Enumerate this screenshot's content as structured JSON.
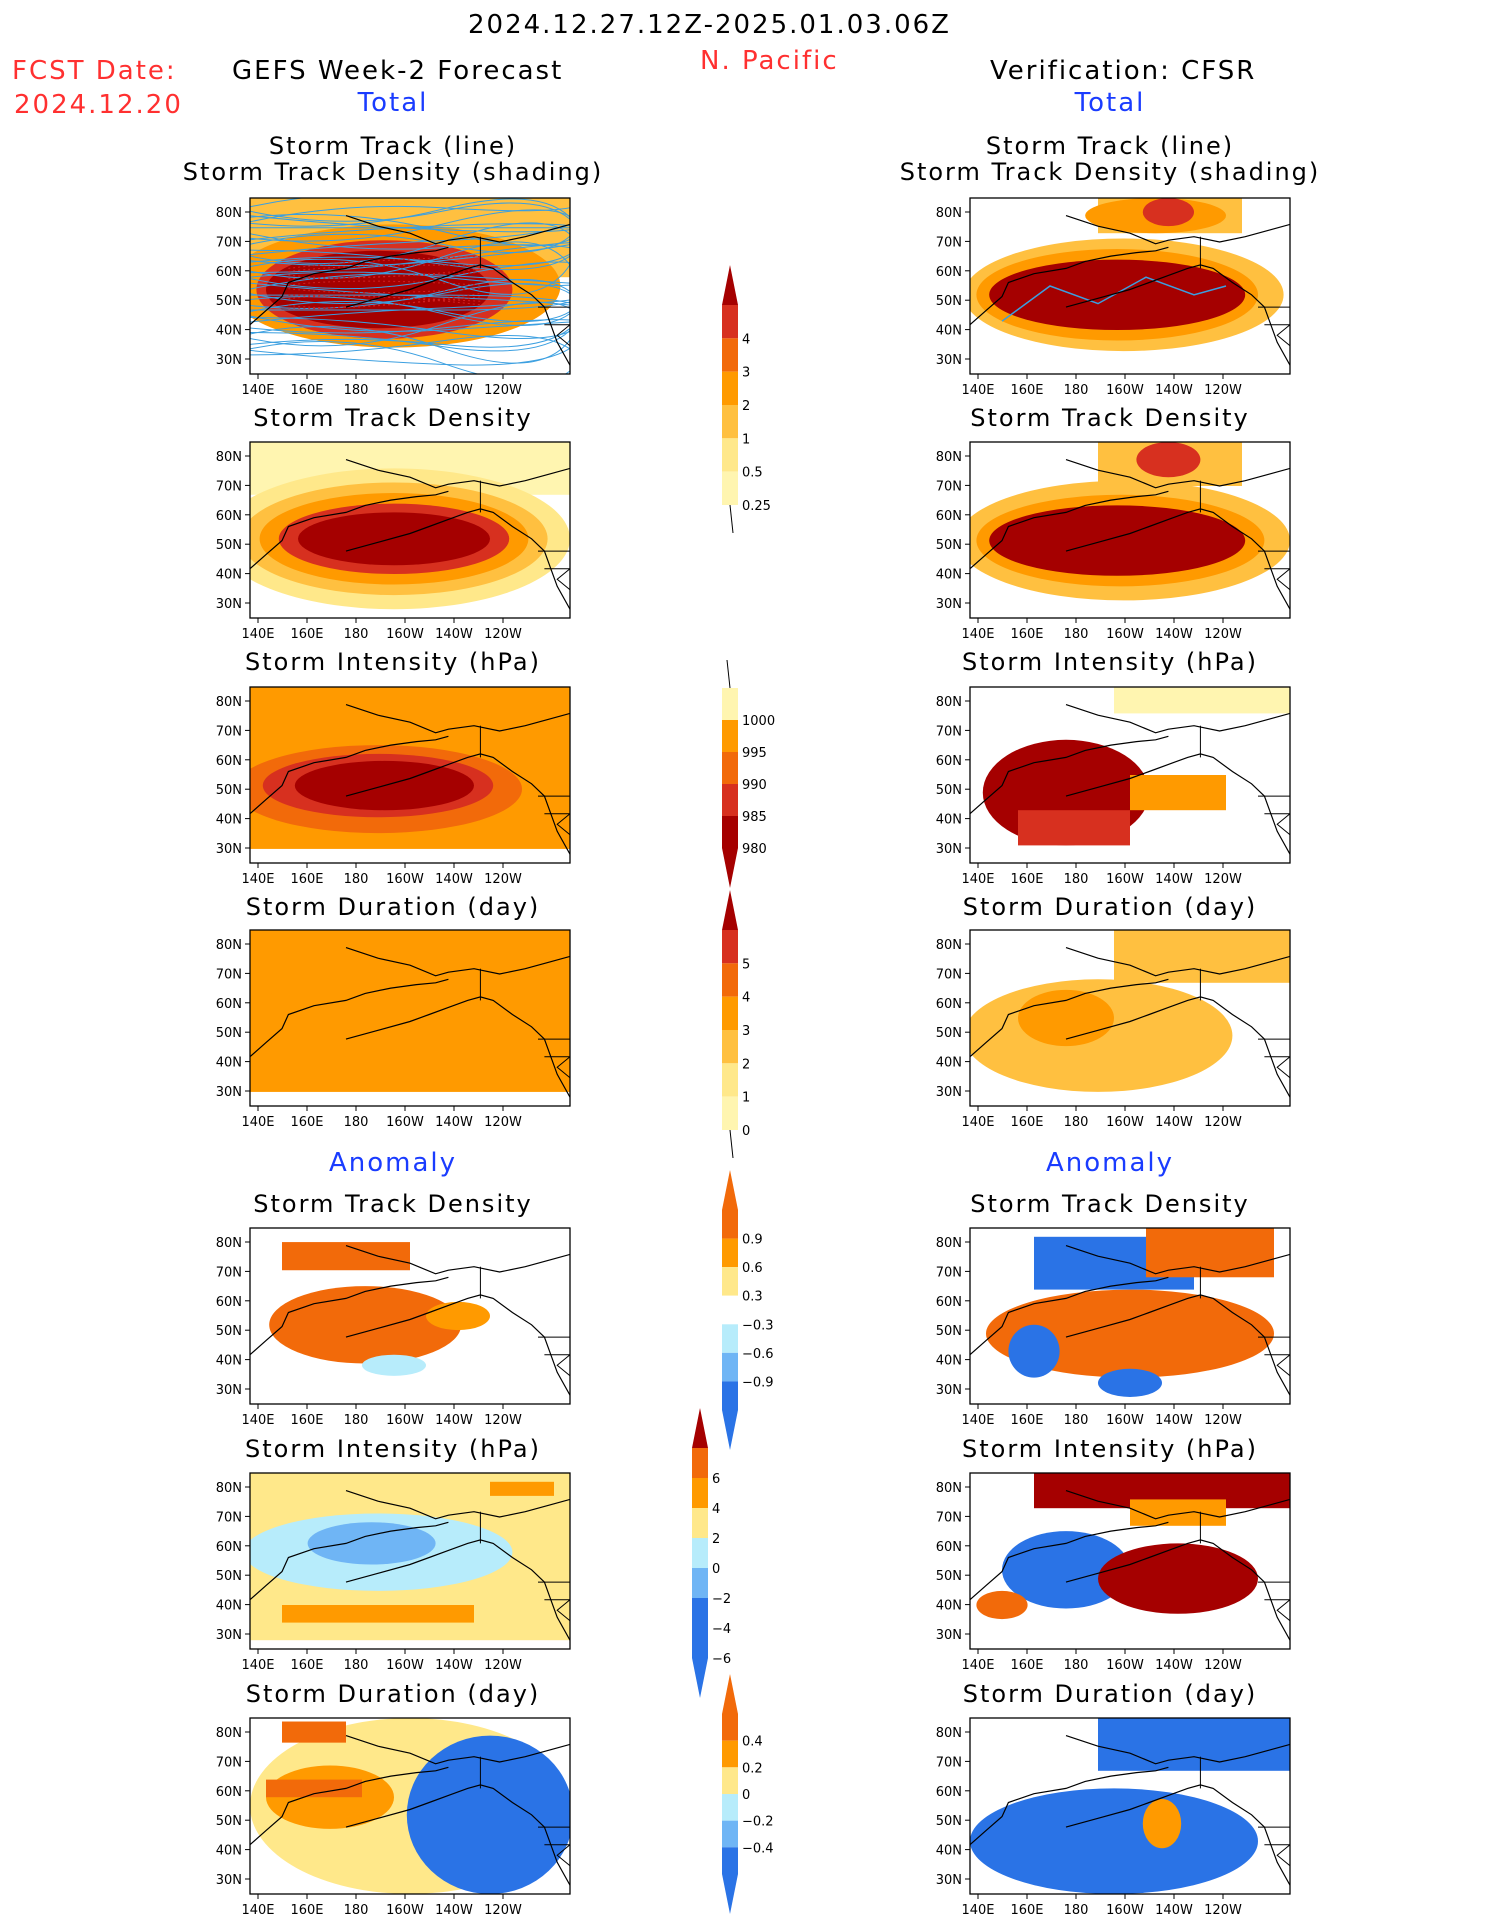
{
  "header": {
    "date_range": "2024.12.27.12Z-2025.01.03.06Z",
    "region": "N. Pacific",
    "fcst_label": "FCST Date:",
    "fcst_date": "2024.12.20",
    "left_title": "GEFS Week-2 Forecast",
    "right_title": "Verification: CFSR"
  },
  "sections": {
    "total": "Total",
    "anomaly": "Anomaly"
  },
  "panel_titles": {
    "track_line": "Storm Track (line)",
    "track_shading": "Storm Track Density (shading)",
    "density": "Storm Track Density",
    "intensity": "Storm Intensity (hPa)",
    "duration": "Storm Duration (day)"
  },
  "axes": {
    "lat": [
      "80N",
      "70N",
      "60N",
      "50N",
      "40N",
      "30N"
    ],
    "lon": [
      "140E",
      "160E",
      "180",
      "160W",
      "140W",
      "120W"
    ]
  },
  "colorbars": {
    "density_total": [
      "4",
      "3",
      "2",
      "1",
      "0.5",
      "0.25"
    ],
    "intensity_total": [
      "1000",
      "995",
      "990",
      "985",
      "980"
    ],
    "duration_total": [
      "5",
      "4",
      "3",
      "2",
      "1",
      "0"
    ],
    "density_anom": [
      "0.9",
      "0.6",
      "0.3",
      "−0.3",
      "−0.6",
      "−0.9"
    ],
    "intensity_anom": [
      "6",
      "4",
      "2",
      "0",
      "−2",
      "−4",
      "−6"
    ],
    "duration_anom": [
      "0.4",
      "0.2",
      "0",
      "−0.2",
      "−0.4"
    ]
  },
  "colors": {
    "dark_red": "#a50000",
    "red": "#d7301f",
    "orange_red": "#f26a0a",
    "orange": "#ff9a00",
    "light_orange": "#ffc040",
    "pale_yellow": "#ffe88a",
    "cream": "#fff5b0",
    "light_blue": "#b7ecfb",
    "mid_blue": "#6fb5f5",
    "blue": "#2a73e6",
    "track_blue": "#3b9fe0",
    "track_red": "#d02020"
  }
}
